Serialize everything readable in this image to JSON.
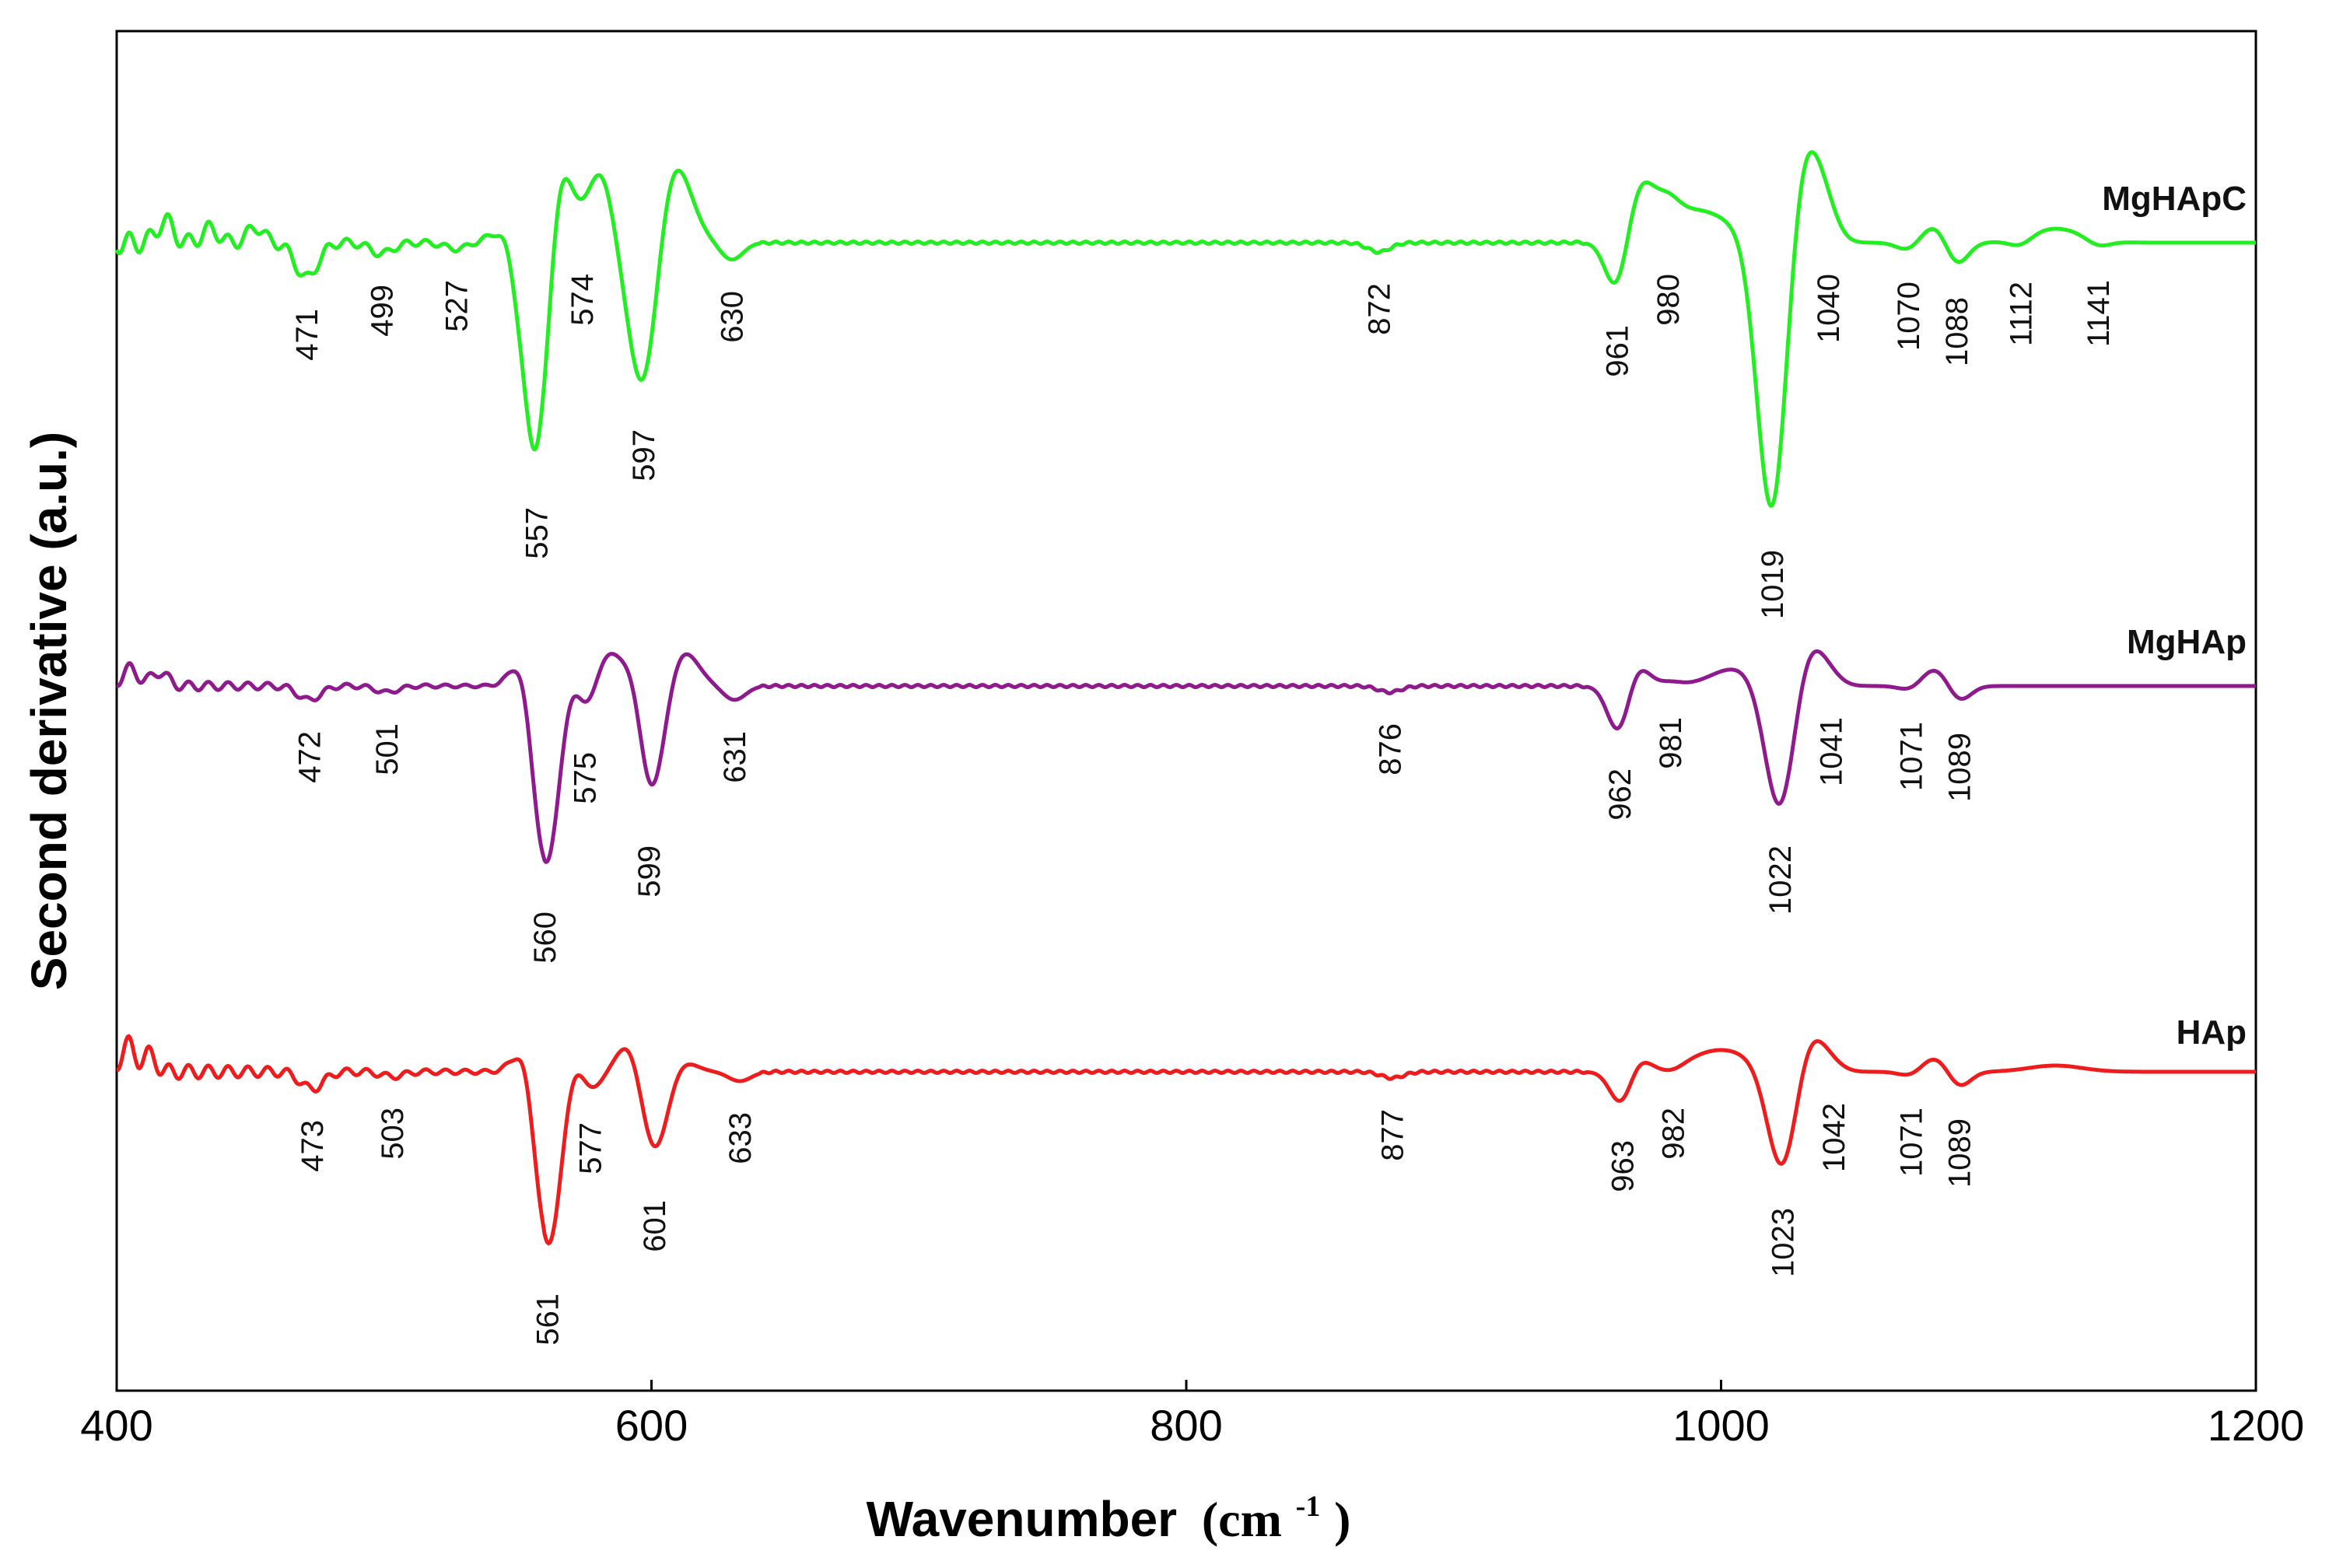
{
  "chart_data": {
    "type": "line",
    "title": "",
    "xlabel": "Wavenumber",
    "xlabel_unit": "(cm",
    "xlabel_unit_sup": "-1",
    "xlabel_unit_close": ")",
    "ylabel": "Second derivative (a.u.)",
    "xlim": [
      400,
      1200
    ],
    "xticks": [
      "400",
      "600",
      "800",
      "1000",
      "1200"
    ],
    "grid": false,
    "series": [
      {
        "name": "MgHApC",
        "color": "#22ee22",
        "peaks": [
          471,
          499,
          527,
          557,
          574,
          597,
          630,
          872,
          961,
          980,
          1019,
          1040,
          1070,
          1088,
          1112,
          1141
        ]
      },
      {
        "name": "MgHAp",
        "color": "#8e1a8e",
        "peaks": [
          472,
          501,
          560,
          575,
          599,
          631,
          876,
          962,
          981,
          1022,
          1041,
          1071,
          1089
        ]
      },
      {
        "name": "HAp",
        "color": "#ee1c1c",
        "peaks": [
          473,
          503,
          561,
          577,
          601,
          633,
          877,
          963,
          982,
          1023,
          1042,
          1071,
          1089
        ]
      }
    ]
  }
}
